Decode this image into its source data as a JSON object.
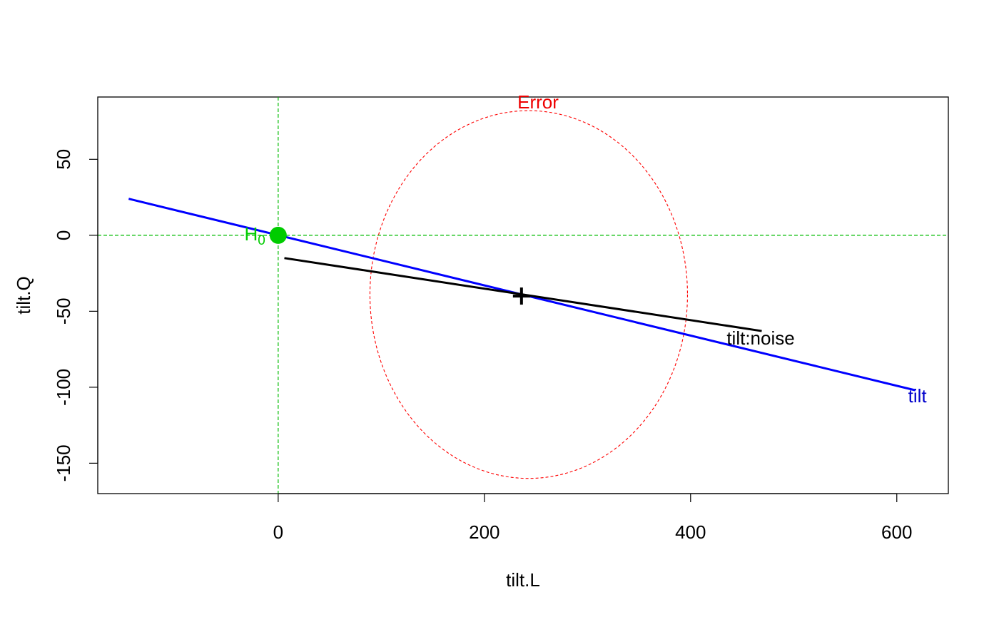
{
  "chart_data": {
    "type": "scatter",
    "xlabel": "tilt.L",
    "ylabel": "tilt.Q",
    "xlim": [
      -175,
      650
    ],
    "ylim": [
      -170,
      91
    ],
    "xticks": [
      0,
      200,
      400,
      600
    ],
    "yticks": [
      50,
      0,
      -50,
      -100,
      -150
    ],
    "xtick_labels": [
      "0",
      "200",
      "400",
      "600"
    ],
    "ytick_labels": [
      "50",
      "0",
      "-50",
      "-100",
      "-150"
    ],
    "grid": false,
    "reference_lines": {
      "x": 0,
      "y": 0,
      "color": "#00bb00"
    },
    "h0_point": {
      "label": "H",
      "label_subscript": "0",
      "x": 0,
      "y": 0,
      "color": "#00cc00"
    },
    "center_point": {
      "x": 236,
      "y": -40,
      "marker": "+",
      "color": "#000000"
    },
    "error_ellipse": {
      "label": "Error",
      "color": "#ff0000",
      "center_x": 243,
      "center_y": -40,
      "x_extent": [
        89,
        397
      ],
      "y_extent": [
        -160,
        82
      ]
    },
    "series": [
      {
        "name": "tilt",
        "color": "#0000ff",
        "points": [
          [
            -145,
            24
          ],
          [
            618,
            -102
          ]
        ]
      },
      {
        "name": "tilt:noise",
        "color": "#000000",
        "points": [
          [
            6,
            -15
          ],
          [
            469,
            -63
          ]
        ]
      }
    ],
    "series_labels": [
      {
        "text": "tilt",
        "x": 620,
        "y": -110,
        "color": "#0000cc"
      },
      {
        "text": "tilt:noise",
        "x": 468,
        "y": -72,
        "color": "#000000"
      }
    ]
  }
}
